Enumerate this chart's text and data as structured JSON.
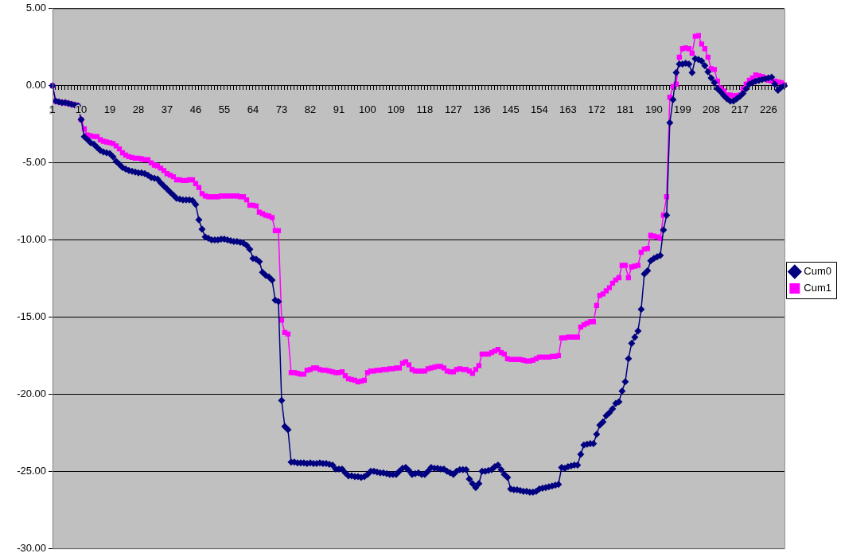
{
  "chart_data": {
    "type": "line",
    "categories": [
      "1",
      null,
      null,
      null,
      null,
      null,
      null,
      null,
      null,
      "10",
      null,
      null,
      null,
      null,
      null,
      null,
      null,
      null,
      "19",
      null,
      null,
      null,
      null,
      null,
      null,
      null,
      null,
      "28",
      null,
      null,
      null,
      null,
      null,
      null,
      null,
      null,
      "37",
      null,
      null,
      null,
      null,
      null,
      null,
      null,
      null,
      "46",
      null,
      null,
      null,
      null,
      null,
      null,
      null,
      null,
      "55",
      null,
      null,
      null,
      null,
      null,
      null,
      null,
      null,
      "64",
      null,
      null,
      null,
      null,
      null,
      null,
      null,
      null,
      "73",
      null,
      null,
      null,
      null,
      null,
      null,
      null,
      null,
      "82",
      null,
      null,
      null,
      null,
      null,
      null,
      null,
      null,
      "91",
      null,
      null,
      null,
      null,
      null,
      null,
      null,
      null,
      "100",
      null,
      null,
      null,
      null,
      null,
      null,
      null,
      null,
      "109",
      null,
      null,
      null,
      null,
      null,
      null,
      null,
      null,
      "118",
      null,
      null,
      null,
      null,
      null,
      null,
      null,
      null,
      "127",
      null,
      null,
      null,
      null,
      null,
      null,
      null,
      null,
      "136",
      null,
      null,
      null,
      null,
      null,
      null,
      null,
      null,
      "145",
      null,
      null,
      null,
      null,
      null,
      null,
      null,
      null,
      "154",
      null,
      null,
      null,
      null,
      null,
      null,
      null,
      null,
      "163",
      null,
      null,
      null,
      null,
      null,
      null,
      null,
      null,
      "172",
      null,
      null,
      null,
      null,
      null,
      null,
      null,
      null,
      "181",
      null,
      null,
      null,
      null,
      null,
      null,
      null,
      null,
      "190",
      null,
      null,
      null,
      null,
      null,
      null,
      null,
      null,
      "199",
      null,
      null,
      null,
      null,
      null,
      null,
      null,
      null,
      "208",
      null,
      null,
      null,
      null,
      null,
      null,
      null,
      null,
      "217",
      null,
      null,
      null,
      null,
      null,
      null,
      null,
      null,
      "226",
      null,
      null,
      null,
      null,
      null
    ],
    "series": [
      {
        "name": "Cum0",
        "color": "#000080",
        "marker": "diamond",
        "values": [
          0,
          -1.0,
          -1.05,
          -1.1,
          -1.1,
          -1.15,
          -1.2,
          -1.25,
          -1.3,
          -2.2,
          -3.3,
          -3.5,
          -3.7,
          -3.8,
          -4.0,
          -4.2,
          -4.3,
          -4.35,
          -4.4,
          -4.6,
          -4.9,
          -5.1,
          -5.3,
          -5.4,
          -5.5,
          -5.55,
          -5.6,
          -5.65,
          -5.65,
          -5.7,
          -5.8,
          -5.95,
          -6.0,
          -6.05,
          -6.3,
          -6.5,
          -6.7,
          -6.9,
          -7.1,
          -7.3,
          -7.35,
          -7.4,
          -7.4,
          -7.4,
          -7.45,
          -7.7,
          -8.7,
          -9.3,
          -9.8,
          -9.9,
          -10.0,
          -10.0,
          -10.0,
          -9.95,
          -9.95,
          -10.0,
          -10.05,
          -10.1,
          -10.1,
          -10.15,
          -10.2,
          -10.35,
          -10.6,
          -11.2,
          -11.25,
          -11.4,
          -12.1,
          -12.3,
          -12.4,
          -12.6,
          -13.9,
          -14.0,
          -20.4,
          -22.1,
          -22.3,
          -24.4,
          -24.4,
          -24.45,
          -24.45,
          -24.45,
          -24.5,
          -24.45,
          -24.5,
          -24.5,
          -24.45,
          -24.5,
          -24.5,
          -24.55,
          -24.6,
          -24.85,
          -24.85,
          -24.85,
          -25.1,
          -25.3,
          -25.3,
          -25.35,
          -25.35,
          -25.4,
          -25.35,
          -25.2,
          -25.0,
          -25.0,
          -25.05,
          -25.1,
          -25.1,
          -25.15,
          -25.2,
          -25.2,
          -25.2,
          -25.0,
          -24.8,
          -24.75,
          -24.95,
          -25.2,
          -25.15,
          -25.1,
          -25.2,
          -25.2,
          -25.0,
          -24.75,
          -24.8,
          -24.8,
          -24.85,
          -24.85,
          -25.0,
          -25.1,
          -25.2,
          -25.0,
          -24.9,
          -24.9,
          -24.9,
          -25.5,
          -25.8,
          -26.05,
          -25.8,
          -25.0,
          -25.0,
          -24.95,
          -24.9,
          -24.7,
          -24.6,
          -24.9,
          -25.2,
          -25.4,
          -26.15,
          -26.2,
          -26.2,
          -26.25,
          -26.3,
          -26.3,
          -26.35,
          -26.35,
          -26.3,
          -26.15,
          -26.1,
          -26.05,
          -26.0,
          -25.95,
          -25.9,
          -25.85,
          -24.75,
          -24.8,
          -24.7,
          -24.65,
          -24.6,
          -24.6,
          -23.9,
          -23.3,
          -23.25,
          -23.2,
          -23.2,
          -22.6,
          -22.0,
          -21.8,
          -21.4,
          -21.2,
          -20.95,
          -20.6,
          -20.5,
          -19.8,
          -19.2,
          -17.7,
          -16.7,
          -16.3,
          -15.9,
          -14.5,
          -12.2,
          -12.0,
          -11.35,
          -11.2,
          -11.1,
          -11.0,
          -9.35,
          -8.4,
          -2.4,
          -0.9,
          0.85,
          1.4,
          1.4,
          1.45,
          1.4,
          0.85,
          1.75,
          1.7,
          1.6,
          1.3,
          0.9,
          0.5,
          0.2,
          -0.2,
          -0.4,
          -0.65,
          -0.85,
          -1.0,
          -1.0,
          -0.85,
          -0.7,
          -0.5,
          -0.2,
          0.1,
          0.2,
          0.3,
          0.35,
          0.4,
          0.45,
          0.5,
          0.55,
          0.1,
          -0.3,
          -0.1,
          0.0
        ]
      },
      {
        "name": "Cum1",
        "color": "#ff00ff",
        "marker": "square",
        "values": [
          0,
          -1.0,
          -1.05,
          -1.1,
          -1.1,
          -1.15,
          -1.2,
          -1.25,
          -1.3,
          -2.2,
          -2.8,
          -3.2,
          -3.25,
          -3.3,
          -3.3,
          -3.5,
          -3.6,
          -3.65,
          -3.7,
          -3.75,
          -3.9,
          -4.1,
          -4.35,
          -4.5,
          -4.6,
          -4.65,
          -4.7,
          -4.7,
          -4.75,
          -4.8,
          -4.8,
          -5.0,
          -5.15,
          -5.2,
          -5.35,
          -5.5,
          -5.7,
          -5.8,
          -5.9,
          -6.1,
          -6.1,
          -6.15,
          -6.15,
          -6.1,
          -6.1,
          -6.35,
          -6.6,
          -7.0,
          -7.15,
          -7.2,
          -7.2,
          -7.2,
          -7.2,
          -7.15,
          -7.15,
          -7.15,
          -7.15,
          -7.15,
          -7.15,
          -7.2,
          -7.2,
          -7.4,
          -7.75,
          -7.75,
          -7.8,
          -8.2,
          -8.3,
          -8.4,
          -8.45,
          -8.55,
          -9.4,
          -9.4,
          -15.2,
          -16.0,
          -16.1,
          -18.6,
          -18.6,
          -18.65,
          -18.7,
          -18.7,
          -18.45,
          -18.4,
          -18.3,
          -18.3,
          -18.4,
          -18.45,
          -18.45,
          -18.5,
          -18.55,
          -18.6,
          -18.6,
          -18.55,
          -18.8,
          -19.0,
          -19.05,
          -19.1,
          -19.2,
          -19.15,
          -19.1,
          -18.6,
          -18.5,
          -18.5,
          -18.45,
          -18.45,
          -18.4,
          -18.4,
          -18.35,
          -18.35,
          -18.3,
          -18.3,
          -18.0,
          -17.9,
          -18.1,
          -18.4,
          -18.5,
          -18.5,
          -18.5,
          -18.5,
          -18.35,
          -18.3,
          -18.25,
          -18.2,
          -18.2,
          -18.3,
          -18.5,
          -18.55,
          -18.55,
          -18.4,
          -18.35,
          -18.4,
          -18.4,
          -18.5,
          -18.65,
          -18.4,
          -18.15,
          -17.4,
          -17.4,
          -17.4,
          -17.3,
          -17.2,
          -17.1,
          -17.3,
          -17.4,
          -17.7,
          -17.75,
          -17.75,
          -17.75,
          -17.75,
          -17.8,
          -17.85,
          -17.85,
          -17.8,
          -17.7,
          -17.6,
          -17.6,
          -17.6,
          -17.6,
          -17.55,
          -17.55,
          -17.5,
          -16.35,
          -16.35,
          -16.3,
          -16.3,
          -16.3,
          -16.3,
          -15.65,
          -15.5,
          -15.4,
          -15.3,
          -15.3,
          -14.25,
          -13.6,
          -13.5,
          -13.3,
          -13.1,
          -12.8,
          -12.6,
          -12.45,
          -11.65,
          -11.65,
          -12.45,
          -11.75,
          -11.7,
          -11.65,
          -10.8,
          -10.6,
          -10.55,
          -9.7,
          -9.75,
          -9.8,
          -9.9,
          -8.4,
          -7.2,
          -0.75,
          -0.05,
          0.1,
          1.85,
          2.4,
          2.45,
          2.4,
          2.1,
          3.2,
          3.25,
          2.7,
          2.4,
          1.85,
          1.1,
          1.05,
          0.3,
          -0.15,
          -0.35,
          -0.6,
          -0.6,
          -0.65,
          -0.65,
          -0.6,
          -0.2,
          0.1,
          0.35,
          0.5,
          0.7,
          0.65,
          0.6,
          0.5,
          0.35,
          0.3,
          0.3,
          0.25,
          0.2,
          0.05
        ]
      }
    ],
    "ylim": [
      -30,
      5
    ],
    "yticks": [
      {
        "value": -30,
        "label": "-30.00"
      },
      {
        "value": -25,
        "label": "-25.00"
      },
      {
        "value": -20,
        "label": "-20.00"
      },
      {
        "value": -15,
        "label": "-15.00"
      },
      {
        "value": -10,
        "label": "-10.00"
      },
      {
        "value": -5,
        "label": "-5.00"
      },
      {
        "value": 0,
        "label": "0.00"
      },
      {
        "value": 5,
        "label": "5.00"
      }
    ],
    "grid": "y",
    "legend": "right",
    "line_style": "solid"
  }
}
